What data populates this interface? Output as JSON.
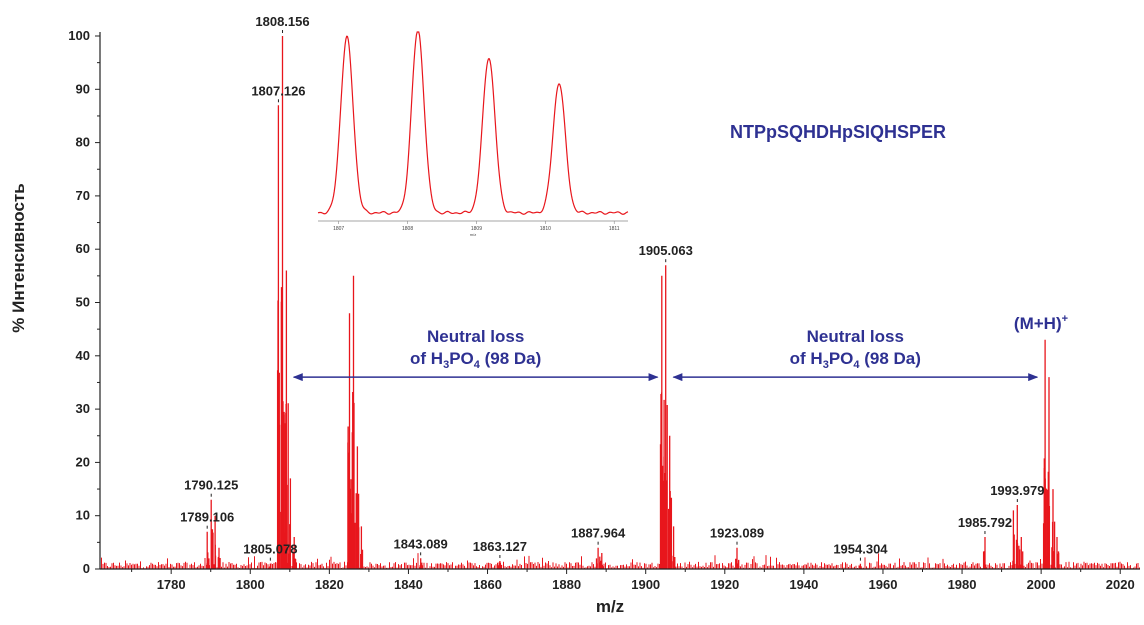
{
  "chart_data": {
    "type": "line",
    "title": "",
    "xlabel": "m/z",
    "ylabel": "% Интенсивность",
    "xlim": [
      1762,
      2025
    ],
    "ylim": [
      0,
      100
    ],
    "xticks": [
      1780,
      1800,
      1820,
      1840,
      1860,
      1880,
      1900,
      1920,
      1940,
      1960,
      1980,
      2000,
      2020
    ],
    "yticks": [
      0,
      10,
      20,
      30,
      40,
      50,
      60,
      70,
      80,
      90,
      100
    ],
    "grid": false,
    "colors": {
      "spectrum": "#e8161c",
      "annotation": "#2e3192",
      "axis": "#222222"
    },
    "series": [
      {
        "peaks": [
          {
            "x": 1789.106,
            "y": 7
          },
          {
            "x": 1790.125,
            "y": 13
          },
          {
            "x": 1791.1,
            "y": 10
          },
          {
            "x": 1792.1,
            "y": 4
          },
          {
            "x": 1805.078,
            "y": 1
          },
          {
            "x": 1807.126,
            "y": 87
          },
          {
            "x": 1808.156,
            "y": 100
          },
          {
            "x": 1809.15,
            "y": 56
          },
          {
            "x": 1810.15,
            "y": 17
          },
          {
            "x": 1811.1,
            "y": 6
          },
          {
            "x": 1825.1,
            "y": 48
          },
          {
            "x": 1826.1,
            "y": 55
          },
          {
            "x": 1827.1,
            "y": 23
          },
          {
            "x": 1828.1,
            "y": 8
          },
          {
            "x": 1843.089,
            "y": 2
          },
          {
            "x": 1863.127,
            "y": 1.5
          },
          {
            "x": 1887.964,
            "y": 4
          },
          {
            "x": 1888.9,
            "y": 3
          },
          {
            "x": 1904.063,
            "y": 55
          },
          {
            "x": 1905.063,
            "y": 57
          },
          {
            "x": 1906.06,
            "y": 25
          },
          {
            "x": 1907.06,
            "y": 8
          },
          {
            "x": 1923.089,
            "y": 4
          },
          {
            "x": 1954.304,
            "y": 1
          },
          {
            "x": 1985.792,
            "y": 6
          },
          {
            "x": 1992.98,
            "y": 11
          },
          {
            "x": 1993.979,
            "y": 12
          },
          {
            "x": 1994.98,
            "y": 6
          },
          {
            "x": 2001.0,
            "y": 43
          },
          {
            "x": 2002.0,
            "y": 36
          },
          {
            "x": 2003.0,
            "y": 15
          },
          {
            "x": 2004.0,
            "y": 6
          }
        ]
      }
    ],
    "peak_labels": [
      {
        "text": "1808.156",
        "x": 1808.156,
        "y": 100
      },
      {
        "text": "1807.126",
        "x": 1807.126,
        "y": 87
      },
      {
        "text": "1790.125",
        "x": 1790.125,
        "y": 13
      },
      {
        "text": "1789.106",
        "x": 1789.106,
        "y": 7
      },
      {
        "text": "1805.078",
        "x": 1805.078,
        "y": 1
      },
      {
        "text": "1843.089",
        "x": 1843.089,
        "y": 2
      },
      {
        "text": "1863.127",
        "x": 1863.127,
        "y": 1.5
      },
      {
        "text": "1887.964",
        "x": 1887.964,
        "y": 4
      },
      {
        "text": "1905.063",
        "x": 1905.063,
        "y": 57
      },
      {
        "text": "1923.089",
        "x": 1923.089,
        "y": 4
      },
      {
        "text": "1954.304",
        "x": 1954.304,
        "y": 1
      },
      {
        "text": "1985.792",
        "x": 1985.792,
        "y": 6
      },
      {
        "text": "1993.979",
        "x": 1993.979,
        "y": 12
      }
    ],
    "annotations": {
      "peptide": "NTPpSQHDHpSIQHSPER",
      "neutral_loss_1": {
        "line1": "Neutral loss",
        "line2_pre": "of H",
        "sub1": "3",
        "mid": "PO",
        "sub2": "4",
        "post": " (98 Da)",
        "from_x": 1811,
        "to_x": 1903,
        "y": 36
      },
      "neutral_loss_2": {
        "line1": "Neutral loss",
        "line2_pre": "of H",
        "sub1": "3",
        "mid": "PO",
        "sub2": "4",
        "post": " (98 Da)",
        "from_x": 1907,
        "to_x": 1999,
        "y": 36
      },
      "parent_ion": {
        "base": "(M+H)",
        "sup": "+"
      }
    },
    "inset": {
      "xlim": [
        1806.7,
        1811.2
      ],
      "xticks": [
        1807,
        1808,
        1809,
        1810,
        1811
      ],
      "xlabel": "m/z",
      "peaks": [
        {
          "x": 1807.12,
          "y": 96
        },
        {
          "x": 1808.15,
          "y": 100
        },
        {
          "x": 1809.18,
          "y": 85
        },
        {
          "x": 1810.2,
          "y": 71
        }
      ]
    }
  }
}
